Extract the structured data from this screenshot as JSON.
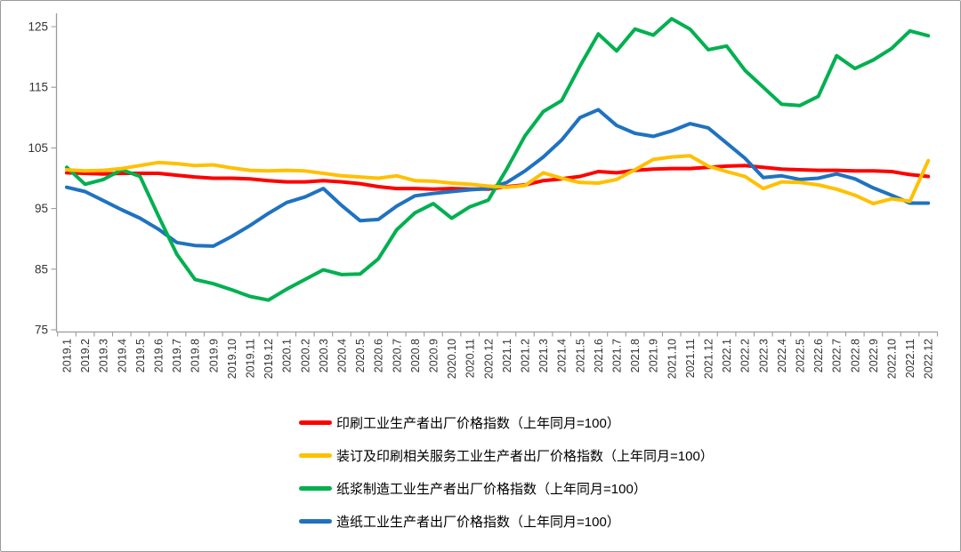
{
  "chart_data": {
    "type": "line",
    "title": "",
    "xlabel": "",
    "ylabel": "",
    "grid": false,
    "legend_position": "bottom-left",
    "ylim": [
      75,
      125
    ],
    "yticks": [
      75,
      85,
      95,
      105,
      115,
      125
    ],
    "categories": [
      "2019.1",
      "2019.2",
      "2019.3",
      "2019.4",
      "2019.5",
      "2019.6",
      "2019.7",
      "2019.8",
      "2019.9",
      "2019.10",
      "2019.11",
      "2019.12",
      "2020.1",
      "2020.2",
      "2020.3",
      "2020.4",
      "2020.5",
      "2020.6",
      "2020.7",
      "2020.8",
      "2020.9",
      "2020.10",
      "2020.11",
      "2020.12",
      "2021.1",
      "2021.2",
      "2021.3",
      "2021.4",
      "2021.5",
      "2021.6",
      "2021.7",
      "2021.8",
      "2021.9",
      "2021.10",
      "2021.11",
      "2021.12",
      "2022.1",
      "2022.2",
      "2022.3",
      "2022.4",
      "2022.5",
      "2022.6",
      "2022.7",
      "2022.8",
      "2022.9",
      "2022.10",
      "2022.11",
      "2022.12"
    ],
    "series": [
      {
        "name": "印刷工业生产者出厂价格指数（上年同月=100）",
        "color": "#fe0000",
        "values": [
          100.9,
          100.8,
          100.7,
          100.8,
          100.8,
          100.8,
          100.5,
          100.2,
          100.0,
          100.0,
          99.9,
          99.6,
          99.4,
          99.4,
          99.6,
          99.4,
          99.1,
          98.6,
          98.3,
          98.3,
          98.2,
          98.3,
          98.2,
          98.2,
          98.6,
          98.9,
          99.6,
          99.9,
          100.3,
          101.1,
          100.9,
          101.3,
          101.5,
          101.6,
          101.6,
          101.8,
          102.0,
          102.1,
          101.8,
          101.5,
          101.4,
          101.3,
          101.3,
          101.2,
          101.2,
          101.1,
          100.6,
          100.3
        ]
      },
      {
        "name": "装订及印刷相关服务工业生产者出厂价格指数（上年同月=100）",
        "color": "#ffc000",
        "values": [
          101.4,
          101.2,
          101.3,
          101.6,
          102.1,
          102.6,
          102.4,
          102.1,
          102.2,
          101.7,
          101.3,
          101.2,
          101.3,
          101.2,
          100.8,
          100.4,
          100.2,
          100.0,
          100.4,
          99.6,
          99.5,
          99.2,
          99.0,
          98.7,
          98.5,
          98.8,
          100.9,
          100.0,
          99.3,
          99.2,
          99.8,
          101.4,
          103.1,
          103.5,
          103.7,
          102.0,
          101.1,
          100.3,
          98.3,
          99.4,
          99.3,
          98.9,
          98.2,
          97.2,
          95.8,
          96.6,
          96.2,
          102.9
        ]
      },
      {
        "name": "纸浆制造工业生产者出厂价格指数（上年同月=100）",
        "color": "#00b050",
        "values": [
          101.8,
          99.0,
          99.8,
          101.4,
          100.3,
          93.8,
          87.5,
          83.3,
          82.6,
          81.6,
          80.5,
          79.9,
          81.7,
          83.3,
          84.9,
          84.1,
          84.2,
          86.7,
          91.5,
          94.3,
          95.8,
          93.4,
          95.3,
          96.4,
          101.5,
          107.0,
          111.0,
          112.8,
          118.5,
          123.8,
          121.0,
          124.6,
          123.6,
          126.3,
          124.6,
          121.2,
          121.8,
          117.8,
          115.0,
          112.2,
          112.0,
          113.5,
          120.2,
          118.1,
          119.5,
          121.4,
          124.3,
          123.5
        ]
      },
      {
        "name": "造纸工业生产者出厂价格指数（上年同月=100）",
        "color": "#1f72c0",
        "values": [
          98.5,
          97.8,
          96.3,
          94.8,
          93.4,
          91.6,
          89.4,
          88.9,
          88.8,
          90.4,
          92.2,
          94.2,
          96.0,
          96.9,
          98.3,
          95.5,
          93.0,
          93.2,
          95.4,
          97.1,
          97.5,
          97.8,
          98.1,
          98.3,
          99.3,
          101.2,
          103.5,
          106.3,
          110.0,
          111.3,
          108.7,
          107.4,
          106.9,
          107.8,
          109.0,
          108.3,
          105.8,
          103.3,
          100.1,
          100.4,
          99.8,
          100.0,
          100.7,
          99.9,
          98.4,
          97.2,
          95.9,
          95.9
        ]
      }
    ]
  }
}
